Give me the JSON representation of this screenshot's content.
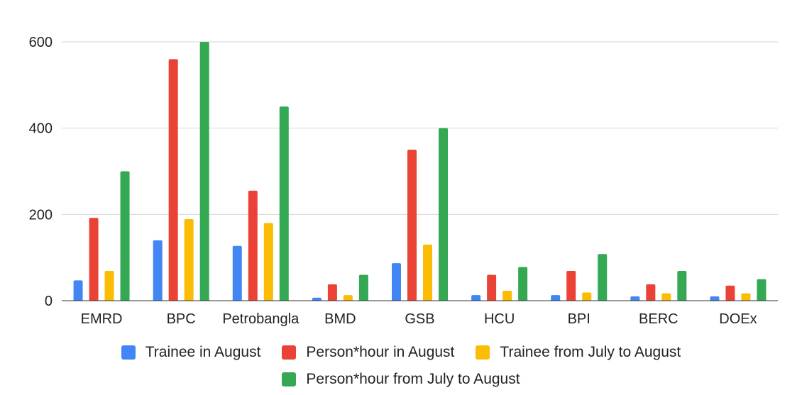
{
  "chart_data": {
    "type": "bar",
    "title": "",
    "xlabel": "",
    "ylabel": "",
    "ylim": [
      0,
      600
    ],
    "yticks": [
      0,
      200,
      400,
      600
    ],
    "grid": true,
    "legend_position": "bottom",
    "categories": [
      "EMRD",
      "BPC",
      "Petrobangla",
      "BMD",
      "GSB",
      "HCU",
      "BPI",
      "BERC",
      "DOEx"
    ],
    "series": [
      {
        "name": "Trainee in August",
        "color": "#4285F4",
        "values": [
          47,
          140,
          127,
          7,
          87,
          13,
          13,
          10,
          10
        ]
      },
      {
        "name": "Person*hour in August",
        "color": "#EA4335",
        "values": [
          192,
          560,
          255,
          38,
          350,
          60,
          69,
          38,
          35
        ]
      },
      {
        "name": "Trainee from July to August",
        "color": "#FBBC04",
        "values": [
          69,
          189,
          180,
          13,
          130,
          23,
          19,
          17,
          17
        ]
      },
      {
        "name": "Person*hour from July to August",
        "color": "#34A853",
        "values": [
          300,
          600,
          450,
          60,
          400,
          78,
          108,
          69,
          50
        ]
      }
    ]
  }
}
